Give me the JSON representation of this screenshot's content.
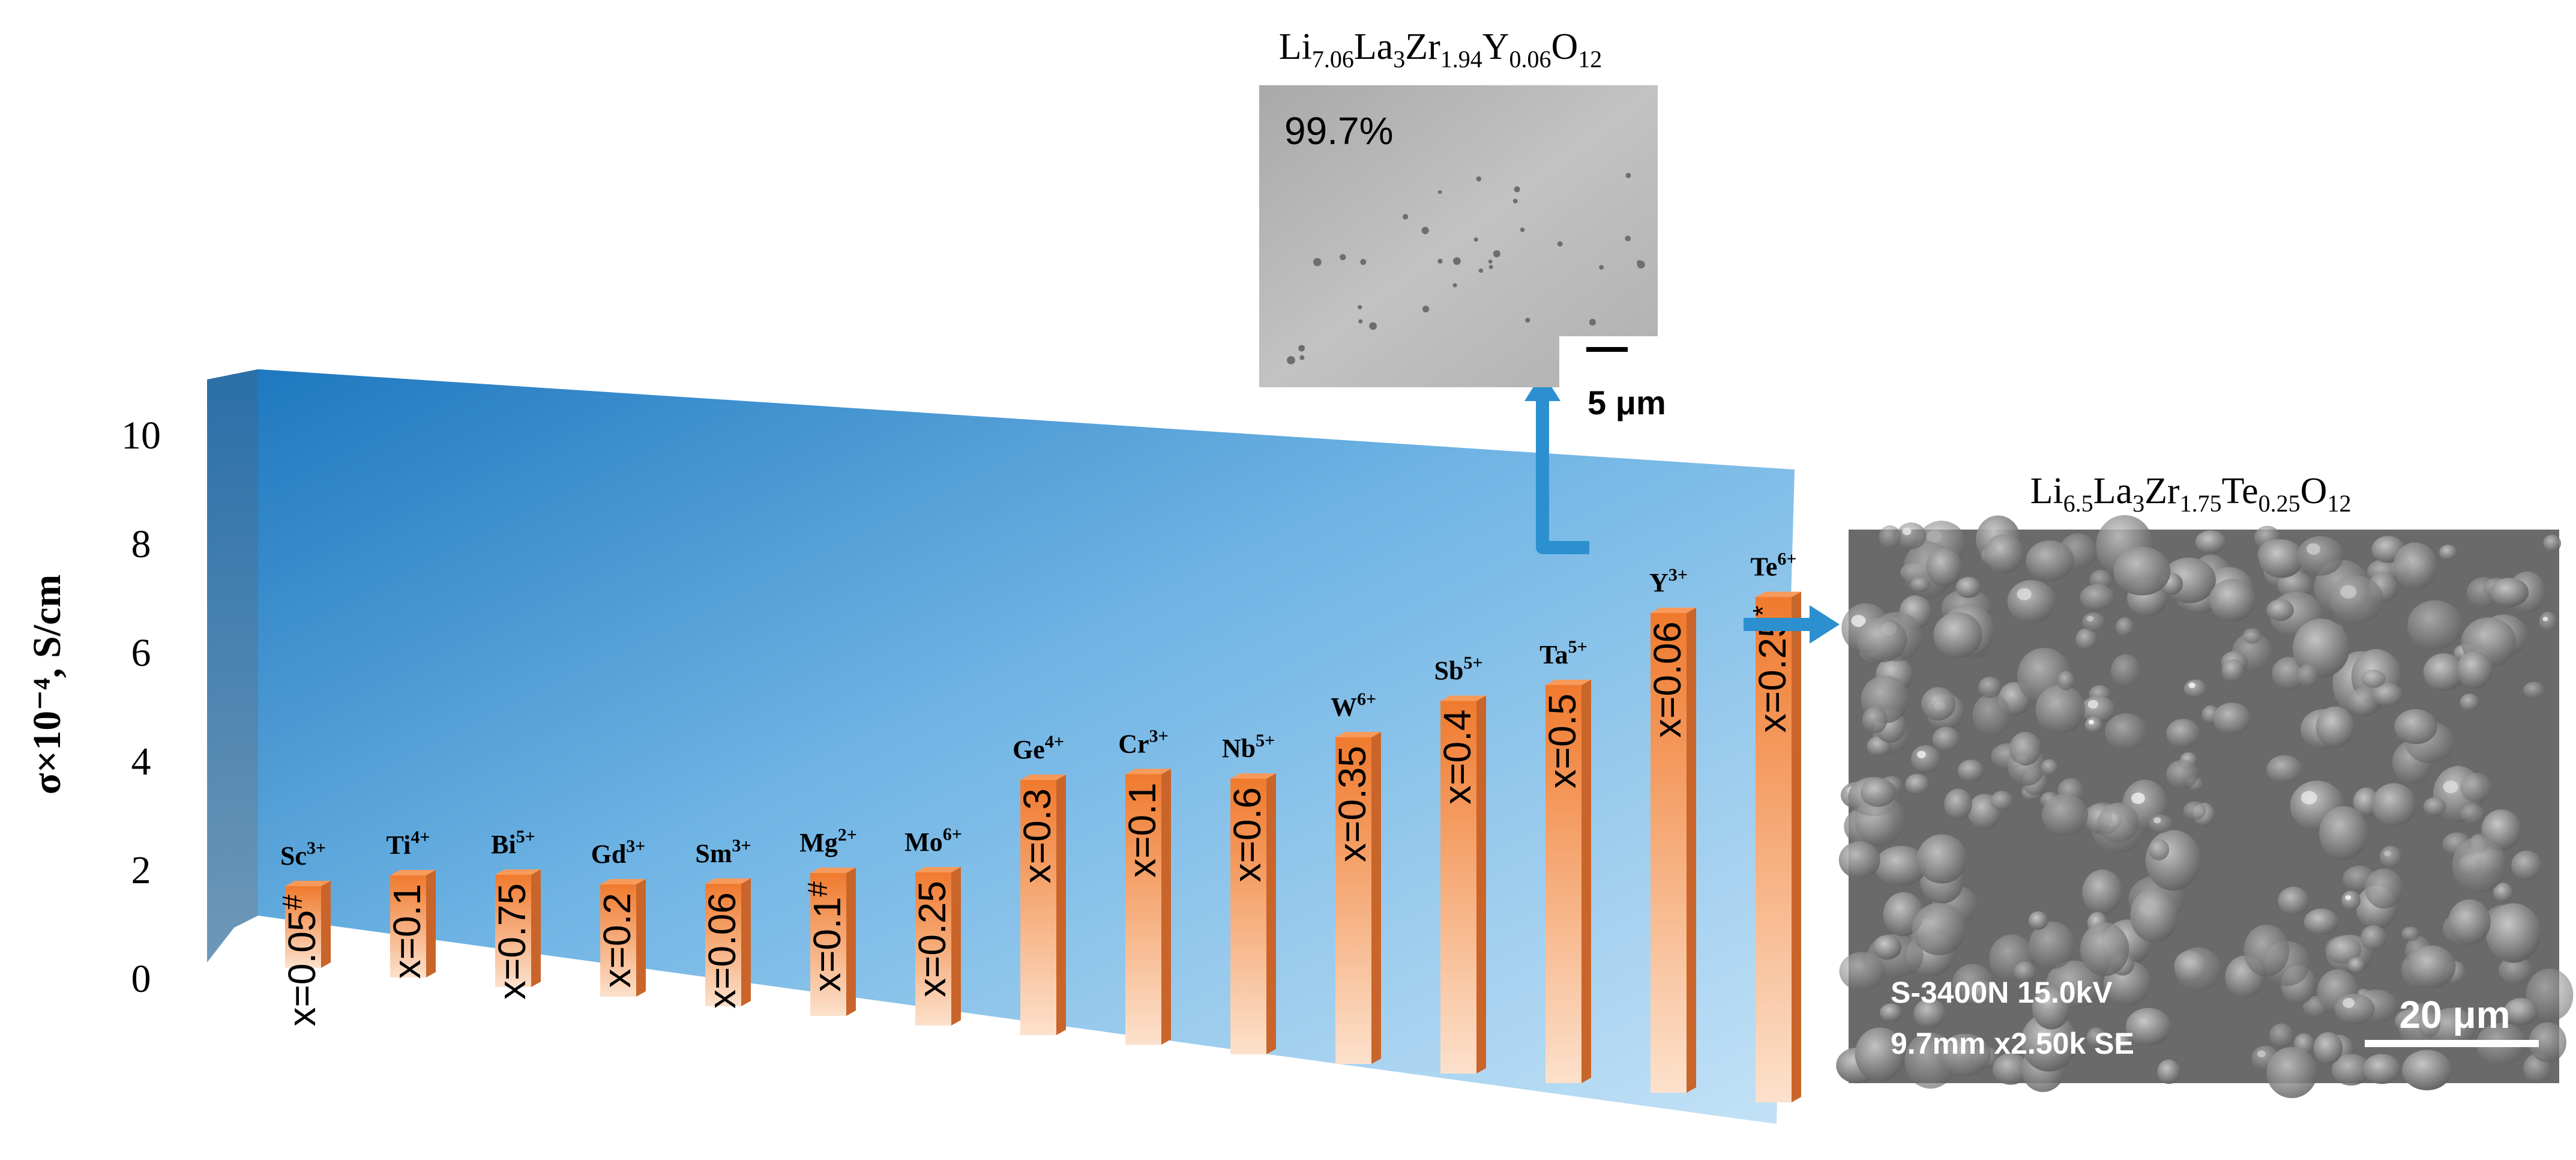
{
  "chart_data": {
    "type": "bar",
    "ylabel": "σ×10⁻⁴, S/cm",
    "ylim": [
      0,
      10
    ],
    "yticks": [
      "0",
      "2",
      "4",
      "6",
      "8",
      "10"
    ],
    "categories": [
      {
        "ion": "Sc",
        "charge": "3+",
        "doping": "x=0.05",
        "mark": "#"
      },
      {
        "ion": "Ti",
        "charge": "4+",
        "doping": "x=0.1",
        "mark": ""
      },
      {
        "ion": "Bi",
        "charge": "5+",
        "doping": "x=0.75",
        "mark": ""
      },
      {
        "ion": "Gd",
        "charge": "3+",
        "doping": "x=0.2",
        "mark": ""
      },
      {
        "ion": "Sm",
        "charge": "3+",
        "doping": "x=0.06",
        "mark": ""
      },
      {
        "ion": "Mg",
        "charge": "2+",
        "doping": "x=0.1",
        "mark": "#"
      },
      {
        "ion": "Mo",
        "charge": "6+",
        "doping": "x=0.25",
        "mark": ""
      },
      {
        "ion": "Ge",
        "charge": "4+",
        "doping": "x=0.3",
        "mark": ""
      },
      {
        "ion": "Cr",
        "charge": "3+",
        "doping": "x=0.1",
        "mark": ""
      },
      {
        "ion": "Nb",
        "charge": "5+",
        "doping": "x=0.6",
        "mark": ""
      },
      {
        "ion": "W",
        "charge": "6+",
        "doping": "x=0.35",
        "mark": ""
      },
      {
        "ion": "Sb",
        "charge": "5+",
        "doping": "x=0.4",
        "mark": ""
      },
      {
        "ion": "Ta",
        "charge": "5+",
        "doping": "x=0.5",
        "mark": ""
      },
      {
        "ion": "Y",
        "charge": "3+",
        "doping": "x=0.06",
        "mark": ""
      },
      {
        "ion": "Te",
        "charge": "6+",
        "doping": "x=0.25",
        "mark": "*"
      }
    ],
    "values": [
      1.6,
      2.0,
      2.2,
      2.2,
      2.4,
      2.8,
      3.0,
      5.0,
      5.3,
      5.4,
      6.4,
      7.3,
      7.8,
      9.4,
      9.9
    ],
    "colors": {
      "bar_front_light": "#fce1cc",
      "bar_front_dark": "#f07a2e",
      "bar_top": "#f79a5a",
      "bar_side": "#c9652a",
      "wall_dark": "#1f78bf",
      "wall_light": "#c4e2f6",
      "arrow": "#2c8fcf"
    }
  },
  "insets": {
    "top": {
      "formula": [
        {
          "t": "Li",
          "sub": "7.06"
        },
        {
          "t": "La",
          "sub": "3"
        },
        {
          "t": "Zr",
          "sub": "1.94"
        },
        {
          "t": "Y",
          "sub": "0.06"
        },
        {
          "t": "O",
          "sub": "12"
        }
      ],
      "density": "99.7%",
      "scalebar": "5 μm"
    },
    "right": {
      "formula": [
        {
          "t": "Li",
          "sub": "6.5"
        },
        {
          "t": "La",
          "sub": "3"
        },
        {
          "t": "Zr",
          "sub": "1.75"
        },
        {
          "t": "Te",
          "sub": "0.25"
        },
        {
          "t": "O",
          "sub": "12"
        }
      ],
      "info_line1": "S-3400N 15.0kV",
      "info_line2": "9.7mm x2.50k SE",
      "scalebar": "20 μm"
    }
  }
}
